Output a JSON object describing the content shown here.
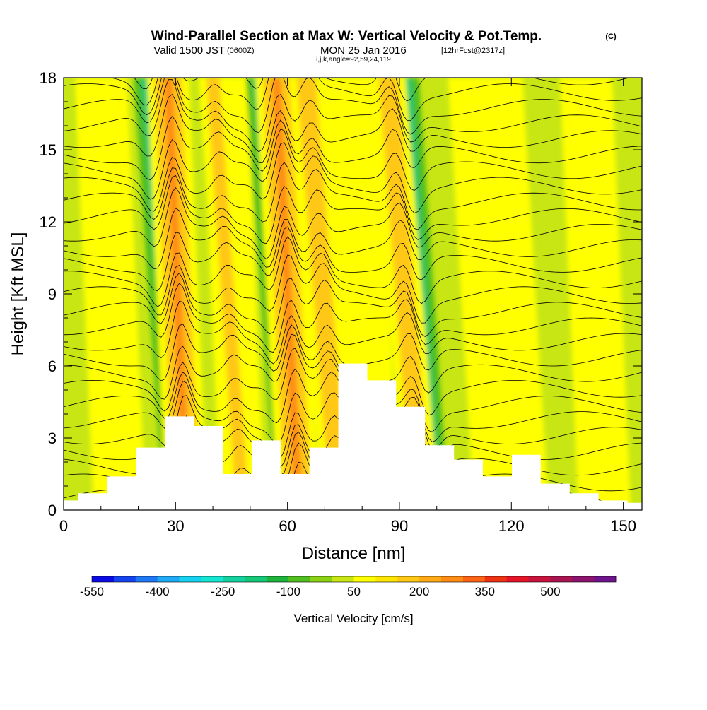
{
  "header": {
    "title": "Wind-Parallel Section at Max W: Vertical Velocity & Pot.Temp.",
    "copyright": "(C)",
    "valid_prefix": "Valid 1500 JST",
    "valid_utc": "(0600Z)",
    "valid_date": "MON 25 Jan 2016",
    "forecast_tag": "[12hrFcst@2317z]",
    "indices": "i,j,k,angle=92,59,24,119"
  },
  "chart_data": {
    "type": "heatmap",
    "xlabel": "Distance [nm]",
    "ylabel": "Height [Kft MSL]",
    "xlim": [
      0,
      155
    ],
    "ylim": [
      0,
      18
    ],
    "x_ticks": [
      "0",
      "30",
      "60",
      "90",
      "120",
      "150"
    ],
    "y_ticks": [
      "0",
      "3",
      "6",
      "9",
      "12",
      "15",
      "18"
    ],
    "colorbar": {
      "label": "Vertical Velocity [cm/s]",
      "tick_labels": [
        "-550",
        "-400",
        "-250",
        "-100",
        "50",
        "200",
        "350",
        "500"
      ],
      "colors": [
        "#0a0ae6",
        "#1444f0",
        "#1e78f5",
        "#1eaaf5",
        "#14d2f0",
        "#14e6d2",
        "#14d2a0",
        "#14c878",
        "#1eb43c",
        "#50be1e",
        "#8cd214",
        "#c8e614",
        "#ffff00",
        "#ffe600",
        "#ffc814",
        "#ffaa14",
        "#ff8c14",
        "#ff6414",
        "#f03214",
        "#e61428",
        "#c8143c",
        "#aa1450",
        "#8c146e",
        "#6e148c"
      ]
    },
    "terrain_heights_kft": [
      0.4,
      0.7,
      1.4,
      2.6,
      3.9,
      3.5,
      1.5,
      2.9,
      1.5,
      2.6,
      6.1,
      5.4,
      4.3,
      2.7,
      2.1,
      1.4,
      2.3,
      1.1,
      0.7,
      0.4,
      0.3
    ],
    "updraft_bands": [
      {
        "name": "",
        "x_surface": 33,
        "x_top": 28,
        "strength": "strong"
      },
      {
        "name": "",
        "x_surface": 48,
        "x_top": 40,
        "strength": "weak"
      },
      {
        "name": "",
        "x_surface": 63,
        "x_top": 57,
        "strength": "strong"
      },
      {
        "name": "",
        "x_surface": 74,
        "x_top": 65,
        "strength": "moderate"
      },
      {
        "name": "",
        "x_surface": 96,
        "x_top": 87,
        "strength": "moderate"
      }
    ],
    "downdraft_bands": [
      {
        "x_surface": 30,
        "x_top": 22
      },
      {
        "x_surface": 60,
        "x_top": 52
      },
      {
        "x_surface": 100,
        "x_top": 92
      }
    ],
    "isentrope_count": 30,
    "grid": false
  }
}
